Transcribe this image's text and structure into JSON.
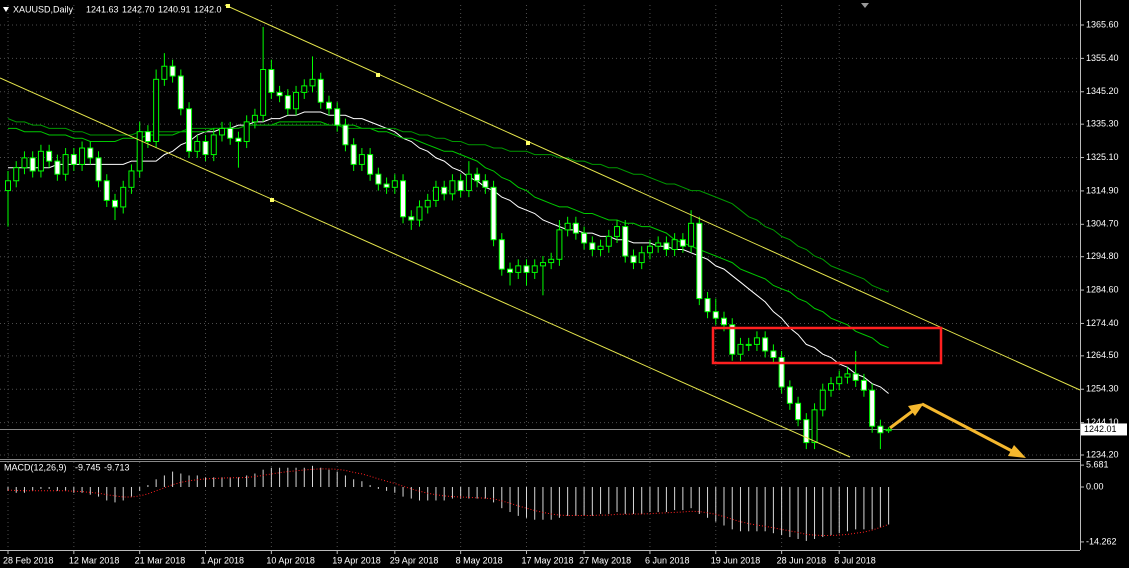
{
  "chart_data": {
    "type": "candlestick",
    "symbol": "XAUUSD,Daily",
    "header_values": [
      "1241.63",
      "1242.70",
      "1240.91",
      "1242.0"
    ],
    "up_color": "#00ff00",
    "down_color": "#ffffff",
    "wick_color": "#00ff00",
    "grid": true,
    "ylim": [
      1232.98,
      1371.71
    ],
    "yticks": [
      {
        "value": 1365.6,
        "label": "1365.60"
      },
      {
        "value": 1355.4,
        "label": "1355.40"
      },
      {
        "value": 1345.2,
        "label": "1345.20"
      },
      {
        "value": 1335.3,
        "label": "1335.30"
      },
      {
        "value": 1325.1,
        "label": "1325.10"
      },
      {
        "value": 1314.9,
        "label": "1314.90"
      },
      {
        "value": 1304.7,
        "label": "1304.70"
      },
      {
        "value": 1294.8,
        "label": "1294.80"
      },
      {
        "value": 1284.6,
        "label": "1284.60"
      },
      {
        "value": 1274.4,
        "label": "1274.40"
      },
      {
        "value": 1264.5,
        "label": "1264.50"
      },
      {
        "value": 1254.3,
        "label": "1254.30"
      },
      {
        "value": 1244.1,
        "label": "1244.10"
      },
      {
        "value": 1234.2,
        "label": "1234.20"
      }
    ],
    "current_price": 1242.01,
    "categories": [
      "28 Feb 2018",
      null,
      null,
      null,
      null,
      null,
      null,
      null,
      "12 Mar 2018",
      null,
      null,
      null,
      null,
      null,
      null,
      null,
      "21 Mar 2018",
      null,
      null,
      null,
      null,
      null,
      null,
      null,
      "1 Apr 2018",
      null,
      null,
      null,
      null,
      null,
      null,
      null,
      "10 Apr 2018",
      null,
      null,
      null,
      null,
      null,
      null,
      null,
      "19 Apr 2018",
      null,
      null,
      null,
      null,
      null,
      null,
      "29 Apr 2018",
      null,
      null,
      null,
      null,
      null,
      null,
      null,
      "8 May 2018",
      null,
      null,
      null,
      null,
      null,
      null,
      null,
      "17 May 2018",
      null,
      null,
      null,
      null,
      null,
      null,
      "27 May 2018",
      null,
      null,
      null,
      null,
      null,
      null,
      null,
      "6 Jun 2018",
      null,
      null,
      null,
      null,
      null,
      null,
      null,
      "19 Jun 2018",
      null,
      null,
      null,
      null,
      null,
      null,
      null,
      "28 Jun 2018",
      null,
      null,
      null,
      null,
      null,
      null,
      "8 Jul 2018",
      null,
      null,
      null,
      null,
      null,
      null
    ],
    "ohlc": [
      [
        1315,
        1321,
        1304,
        1318
      ],
      [
        1318,
        1324,
        1316,
        1322
      ],
      [
        1322,
        1327,
        1320,
        1325
      ],
      [
        1325,
        1327,
        1319,
        1321
      ],
      [
        1321,
        1329,
        1319,
        1327
      ],
      [
        1327,
        1329,
        1322,
        1324
      ],
      [
        1324,
        1326,
        1318,
        1320
      ],
      [
        1320,
        1328,
        1318,
        1326
      ],
      [
        1326,
        1328,
        1321,
        1323
      ],
      [
        1323,
        1330,
        1321,
        1328
      ],
      [
        1328,
        1330,
        1323,
        1325
      ],
      [
        1325,
        1327,
        1316,
        1318
      ],
      [
        1318,
        1320,
        1310,
        1312
      ],
      [
        1312,
        1314,
        1306,
        1310
      ],
      [
        1310,
        1318,
        1308,
        1316
      ],
      [
        1316,
        1323,
        1314,
        1321
      ],
      [
        1321,
        1336,
        1319,
        1333
      ],
      [
        1333,
        1335,
        1328,
        1330
      ],
      [
        1330,
        1352,
        1328,
        1349
      ],
      [
        1349,
        1357,
        1347,
        1353
      ],
      [
        1353,
        1355,
        1348,
        1350
      ],
      [
        1350,
        1352,
        1338,
        1340
      ],
      [
        1340,
        1342,
        1325,
        1327
      ],
      [
        1327,
        1332,
        1325,
        1330
      ],
      [
        1330,
        1332,
        1324,
        1326
      ],
      [
        1326,
        1334,
        1324,
        1332
      ],
      [
        1332,
        1336,
        1330,
        1334
      ],
      [
        1334,
        1336,
        1329,
        1331
      ],
      [
        1331,
        1333,
        1322,
        1330
      ],
      [
        1330,
        1338,
        1328,
        1336
      ],
      [
        1336,
        1340,
        1334,
        1338
      ],
      [
        1338,
        1365,
        1336,
        1352
      ],
      [
        1352,
        1355,
        1343,
        1345
      ],
      [
        1345,
        1347,
        1342,
        1344
      ],
      [
        1344,
        1346,
        1338,
        1340
      ],
      [
        1340,
        1347,
        1338,
        1345
      ],
      [
        1345,
        1349,
        1343,
        1347
      ],
      [
        1347,
        1356,
        1345,
        1349
      ],
      [
        1349,
        1351,
        1340,
        1342
      ],
      [
        1342,
        1344,
        1338,
        1340
      ],
      [
        1340,
        1342,
        1333,
        1335
      ],
      [
        1335,
        1337,
        1327,
        1329
      ],
      [
        1329,
        1331,
        1321,
        1323
      ],
      [
        1323,
        1328,
        1321,
        1326
      ],
      [
        1326,
        1328,
        1318,
        1320
      ],
      [
        1320,
        1322,
        1315,
        1317
      ],
      [
        1317,
        1319,
        1314,
        1316
      ],
      [
        1316,
        1320,
        1314,
        1318
      ],
      [
        1318,
        1320,
        1305,
        1307
      ],
      [
        1307,
        1309,
        1303,
        1306
      ],
      [
        1306,
        1312,
        1304,
        1310
      ],
      [
        1310,
        1314,
        1308,
        1312
      ],
      [
        1312,
        1318,
        1310,
        1316
      ],
      [
        1316,
        1318,
        1312,
        1314
      ],
      [
        1314,
        1320,
        1312,
        1318
      ],
      [
        1318,
        1320,
        1313,
        1315
      ],
      [
        1315,
        1324,
        1313,
        1320
      ],
      [
        1320,
        1322,
        1316,
        1318
      ],
      [
        1318,
        1320,
        1314,
        1316
      ],
      [
        1316,
        1318,
        1298,
        1300
      ],
      [
        1300,
        1302,
        1289,
        1291
      ],
      [
        1291,
        1293,
        1286,
        1290
      ],
      [
        1290,
        1294,
        1288,
        1292
      ],
      [
        1292,
        1294,
        1286,
        1290
      ],
      [
        1290,
        1294,
        1288,
        1292
      ],
      [
        1292,
        1295,
        1283,
        1293
      ],
      [
        1293,
        1296,
        1291,
        1294
      ],
      [
        1294,
        1306,
        1292,
        1303
      ],
      [
        1303,
        1307,
        1301,
        1305
      ],
      [
        1305,
        1307,
        1300,
        1302
      ],
      [
        1302,
        1304,
        1297,
        1299
      ],
      [
        1299,
        1301,
        1295,
        1297
      ],
      [
        1297,
        1300,
        1295,
        1298
      ],
      [
        1298,
        1303,
        1296,
        1301
      ],
      [
        1301,
        1306,
        1299,
        1304
      ],
      [
        1304,
        1306,
        1293,
        1295
      ],
      [
        1295,
        1297,
        1291,
        1293
      ],
      [
        1293,
        1298,
        1291,
        1296
      ],
      [
        1296,
        1300,
        1294,
        1298
      ],
      [
        1298,
        1301,
        1296,
        1299
      ],
      [
        1299,
        1301,
        1295,
        1297
      ],
      [
        1297,
        1302,
        1295,
        1300
      ],
      [
        1300,
        1302,
        1296,
        1298
      ],
      [
        1298,
        1309,
        1296,
        1305
      ],
      [
        1305,
        1307,
        1280,
        1282
      ],
      [
        1282,
        1284,
        1276,
        1278
      ],
      [
        1278,
        1282,
        1274,
        1276
      ],
      [
        1276,
        1278,
        1272,
        1274
      ],
      [
        1274,
        1276,
        1263,
        1265
      ],
      [
        1265,
        1270,
        1263,
        1268
      ],
      [
        1268,
        1270,
        1266,
        1268
      ],
      [
        1268,
        1272,
        1266,
        1270
      ],
      [
        1270,
        1272,
        1264,
        1266
      ],
      [
        1266,
        1268,
        1262,
        1264
      ],
      [
        1264,
        1266,
        1253,
        1255
      ],
      [
        1255,
        1257,
        1248,
        1250
      ],
      [
        1250,
        1252,
        1243,
        1245
      ],
      [
        1245,
        1247,
        1236,
        1238
      ],
      [
        1238,
        1250,
        1236,
        1248
      ],
      [
        1248,
        1256,
        1246,
        1254
      ],
      [
        1254,
        1258,
        1252,
        1256
      ],
      [
        1256,
        1260,
        1254,
        1258
      ],
      [
        1258,
        1261,
        1256,
        1259
      ],
      [
        1259,
        1266,
        1255,
        1257
      ],
      [
        1257,
        1259,
        1252,
        1254
      ],
      [
        1254,
        1256,
        1241,
        1243
      ],
      [
        1243,
        1245,
        1236,
        1241
      ],
      [
        1241.63,
        1242.7,
        1240.91,
        1242.01
      ]
    ],
    "moving_averages": [
      {
        "color": "#ffffff",
        "values": [
          1322,
          1322,
          1322,
          1322,
          1322,
          1322,
          1323,
          1323,
          1323,
          1323,
          1323,
          1323,
          1323,
          1323,
          1323,
          1324,
          1324,
          1324,
          1324,
          1326,
          1327,
          1329,
          1330,
          1332,
          1333,
          1333,
          1334,
          1334,
          1335,
          1335,
          1336,
          1336,
          1337,
          1337,
          1338,
          1338,
          1339,
          1339,
          1339,
          1338,
          1338,
          1338,
          1337,
          1337,
          1336,
          1335,
          1334,
          1333,
          1331,
          1330,
          1328,
          1327,
          1325,
          1324,
          1322,
          1321,
          1319,
          1318,
          1316,
          1315,
          1313,
          1312,
          1310,
          1309,
          1308,
          1306,
          1305,
          1304,
          1303,
          1303,
          1302,
          1302,
          1301,
          1301,
          1300,
          1300,
          1299,
          1299,
          1299,
          1298,
          1298,
          1297,
          1297,
          1296,
          1295,
          1294,
          1292,
          1291,
          1289,
          1287,
          1285,
          1283,
          1281,
          1278,
          1276,
          1273,
          1271,
          1268,
          1267,
          1265,
          1264,
          1262,
          1261,
          1259,
          1258,
          1256,
          1255,
          1253
        ]
      },
      {
        "color": "#00c800",
        "values": [
          1334,
          1334,
          1333,
          1333,
          1333,
          1332,
          1332,
          1332,
          1331,
          1331,
          1330,
          1330,
          1330,
          1330,
          1331,
          1331,
          1331,
          1332,
          1332,
          1332,
          1332,
          1333,
          1333,
          1333,
          1333,
          1334,
          1334,
          1334,
          1334,
          1335,
          1335,
          1335,
          1335,
          1336,
          1336,
          1336,
          1336,
          1336,
          1336,
          1335,
          1335,
          1335,
          1335,
          1334,
          1334,
          1333,
          1333,
          1332,
          1331,
          1331,
          1330,
          1329,
          1328,
          1327,
          1327,
          1326,
          1325,
          1324,
          1322,
          1321,
          1319,
          1318,
          1316,
          1315,
          1313,
          1312,
          1311,
          1310,
          1310,
          1309,
          1308,
          1308,
          1307,
          1306,
          1306,
          1305,
          1305,
          1304,
          1304,
          1303,
          1302,
          1300,
          1299,
          1298,
          1297,
          1296,
          1295,
          1294,
          1293,
          1291,
          1290,
          1289,
          1288,
          1286,
          1285,
          1284,
          1282,
          1281,
          1279,
          1278,
          1276,
          1275,
          1274,
          1272,
          1271,
          1270,
          1268,
          1267
        ]
      },
      {
        "color": "#009900",
        "values": [
          1337,
          1336,
          1336,
          1335,
          1335,
          1334,
          1334,
          1334,
          1333,
          1333,
          1332,
          1332,
          1332,
          1332,
          1332,
          1332,
          1333,
          1333,
          1333,
          1333,
          1333,
          1333,
          1334,
          1334,
          1334,
          1334,
          1334,
          1334,
          1334,
          1335,
          1335,
          1335,
          1335,
          1335,
          1335,
          1335,
          1335,
          1335,
          1335,
          1335,
          1335,
          1334,
          1334,
          1334,
          1334,
          1334,
          1334,
          1334,
          1333,
          1333,
          1332,
          1332,
          1331,
          1331,
          1330,
          1330,
          1329,
          1329,
          1329,
          1328,
          1328,
          1327,
          1327,
          1327,
          1326,
          1326,
          1326,
          1325,
          1325,
          1324,
          1324,
          1323,
          1323,
          1322,
          1322,
          1321,
          1320,
          1320,
          1319,
          1318,
          1317,
          1317,
          1316,
          1315,
          1315,
          1314,
          1313,
          1312,
          1311,
          1309,
          1307,
          1306,
          1304,
          1303,
          1301,
          1300,
          1298,
          1297,
          1295,
          1294,
          1292,
          1291,
          1290,
          1289,
          1288,
          1286,
          1285,
          1284
        ]
      }
    ],
    "macd": {
      "name": "MACD(12,26,9)",
      "histogram_color": "#d8d8d8",
      "signal_color": "#ff2020",
      "ylim": [
        -16.36,
        6.49
      ],
      "yticks": [
        5.681,
        {
          "value": 0,
          "label": "0.00"
        },
        -14.262
      ],
      "histogram": [
        -1,
        -1.5,
        -1.5,
        -1,
        -0.5,
        -0.5,
        -1,
        -1,
        -1.5,
        -1.5,
        -2,
        -2.5,
        -3.5,
        -4,
        -3.5,
        -2.5,
        -1,
        0.5,
        2,
        3,
        4,
        3.5,
        3,
        3,
        2.5,
        2.5,
        2.5,
        2.5,
        2.5,
        3,
        3.5,
        4.5,
        5,
        5,
        5,
        5,
        5,
        5.5,
        5,
        4.5,
        4,
        3,
        2,
        1.5,
        0.5,
        -0.5,
        -1,
        -1.5,
        -2.5,
        -3,
        -3.5,
        -3.5,
        -3.5,
        -3.5,
        -3,
        -3,
        -3,
        -3,
        -3,
        -4,
        -5.5,
        -6.5,
        -7.5,
        -8,
        -8.5,
        -8.5,
        -8.5,
        -8,
        -7.5,
        -7.5,
        -7.5,
        -7.5,
        -7,
        -7,
        -6.5,
        -7,
        -7,
        -7,
        -6.5,
        -6.5,
        -6.5,
        -6,
        -6,
        -5.5,
        -7,
        -8,
        -9,
        -10,
        -11,
        -11.5,
        -11.5,
        -11.5,
        -11.5,
        -12,
        -12.5,
        -13,
        -13.5,
        -14,
        -13.5,
        -13,
        -12.5,
        -12,
        -11.5,
        -11,
        -11,
        -11,
        -10.5,
        -9.745
      ],
      "signal": [
        -0.8,
        -0.9,
        -1,
        -1,
        -1,
        -1,
        -1,
        -1,
        -1.1,
        -1.2,
        -1.4,
        -1.6,
        -2,
        -2.3,
        -2.6,
        -2.6,
        -2.3,
        -1.8,
        -1,
        -0.2,
        0.6,
        1.2,
        1.6,
        1.9,
        2.1,
        2.2,
        2.3,
        2.4,
        2.4,
        2.5,
        2.7,
        3,
        3.4,
        3.7,
        4,
        4.2,
        4.4,
        4.6,
        4.7,
        4.7,
        4.6,
        4.3,
        3.8,
        3.4,
        2.8,
        2.1,
        1.5,
        0.9,
        0.2,
        -0.5,
        -1.1,
        -1.6,
        -2,
        -2.3,
        -2.5,
        -2.6,
        -2.7,
        -2.8,
        -2.9,
        -3.1,
        -3.6,
        -4.2,
        -4.9,
        -5.5,
        -6.1,
        -6.6,
        -7,
        -7.3,
        -7.4,
        -7.4,
        -7.4,
        -7.4,
        -7.3,
        -7.3,
        -7.1,
        -7.1,
        -7,
        -7,
        -6.9,
        -6.8,
        -6.7,
        -6.6,
        -6.5,
        -6.3,
        -6.4,
        -6.7,
        -7.1,
        -7.7,
        -8.4,
        -9,
        -9.5,
        -9.9,
        -10.2,
        -10.6,
        -11,
        -11.4,
        -11.8,
        -12.3,
        -12.5,
        -12.6,
        -12.6,
        -12.5,
        -12.3,
        -12,
        -11.7,
        -11.2,
        -10.5,
        -9.713
      ]
    }
  }
}
